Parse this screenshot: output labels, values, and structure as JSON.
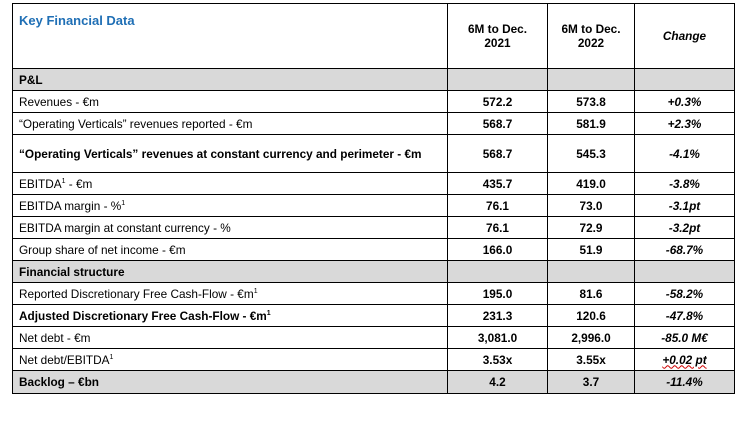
{
  "title": "Key Financial Data",
  "columns": {
    "period1_line1": "6M to Dec.",
    "period1_line2": "2021",
    "period2_line1": "6M to Dec.",
    "period2_line2": "2022",
    "change": "Change"
  },
  "sections": {
    "pl": "P&L",
    "financial_structure": "Financial structure"
  },
  "rows": [
    {
      "label": "Revenues - €m",
      "sup": "",
      "v2021": "572.2",
      "v2022": "573.8",
      "change": "+0.3%"
    },
    {
      "label": "“Operating Verticals” revenues reported - €m",
      "sup": "",
      "v2021": "568.7",
      "v2022": "581.9",
      "change": "+2.3%"
    },
    {
      "label": "“Operating Verticals” revenues at constant currency and perimeter - €m",
      "sup": "",
      "v2021": "568.7",
      "v2022": "545.3",
      "change": "-4.1%"
    },
    {
      "label": "EBITDA",
      "sup": "1",
      "label_after": " - €m",
      "v2021": "435.7",
      "v2022": "419.0",
      "change": "-3.8%"
    },
    {
      "label": "EBITDA margin - %",
      "sup": "1",
      "v2021": "76.1",
      "v2022": "73.0",
      "change": "-3.1pt"
    },
    {
      "label": "EBITDA margin at constant currency - %",
      "sup": "",
      "v2021": "76.1",
      "v2022": "72.9",
      "change": "-3.2pt"
    },
    {
      "label": "Group share of net income - €m",
      "sup": "",
      "v2021": "166.0",
      "v2022": "51.9",
      "change": "-68.7%"
    },
    {
      "label": "Reported Discretionary Free Cash-Flow - €m",
      "sup": "1",
      "v2021": "195.0",
      "v2022": "81.6",
      "change": "-58.2%"
    },
    {
      "label": "Adjusted Discretionary Free Cash-Flow - €m",
      "sup": "1",
      "v2021": "231.3",
      "v2022": "120.6",
      "change": "-47.8%"
    },
    {
      "label": "Net debt - €m",
      "sup": "",
      "v2021": "3,081.0",
      "v2022": "2,996.0",
      "change": "-85.0 M€"
    },
    {
      "label": "Net debt/EBITDA",
      "sup": "1",
      "v2021": "3.53x",
      "v2022": "3.55x",
      "change": "+0.02 pt"
    },
    {
      "label": "Backlog – €bn",
      "sup": "",
      "v2021": "4.2",
      "v2022": "3.7",
      "change": "-11.4%"
    }
  ]
}
